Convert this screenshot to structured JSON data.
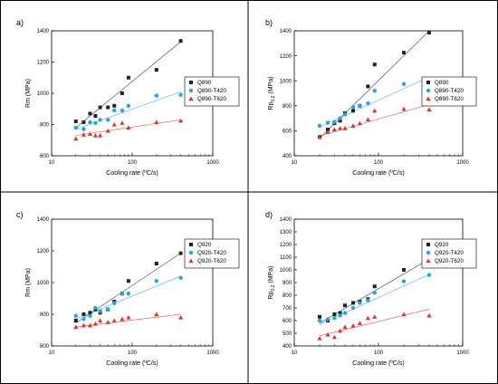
{
  "chart_data": [
    {
      "type": "scatter",
      "panel_label": "a)",
      "xlabel": "Cooling rate (ºC/s)",
      "ylabel": "Rm (MPa)",
      "ylabel_sub": "",
      "x_scale": "log",
      "xlim": [
        10,
        1000
      ],
      "ylim": [
        600,
        1400
      ],
      "x_ticks": [
        "10",
        "100",
        "1000"
      ],
      "y_ticks": [
        "600",
        "800",
        "1000",
        "1200",
        "1400"
      ],
      "legend_position": "right",
      "series": [
        {
          "name": "Q890",
          "marker": "square",
          "color": "#222222",
          "x": [
            20,
            25,
            30,
            35,
            40,
            50,
            60,
            75,
            90,
            200,
            400
          ],
          "y": [
            820,
            815,
            870,
            855,
            910,
            910,
            920,
            1000,
            1100,
            1150,
            1335
          ],
          "fit": [
            [
              20,
              780
            ],
            [
              400,
              1330
            ]
          ]
        },
        {
          "name": "Q890-T420",
          "marker": "circle",
          "color": "#1fa8e0",
          "x": [
            20,
            25,
            30,
            35,
            40,
            50,
            60,
            75,
            90,
            200,
            400
          ],
          "y": [
            780,
            770,
            815,
            810,
            830,
            830,
            890,
            890,
            920,
            985,
            990
          ],
          "fit": [
            [
              20,
              770
            ],
            [
              400,
              1010
            ]
          ]
        },
        {
          "name": "Q890-T620",
          "marker": "triangle",
          "color": "#e83030",
          "x": [
            20,
            25,
            30,
            35,
            40,
            50,
            60,
            75,
            90,
            200,
            400
          ],
          "y": [
            710,
            735,
            740,
            730,
            730,
            760,
            800,
            810,
            780,
            815,
            825
          ],
          "fit": [
            [
              20,
              730
            ],
            [
              400,
              830
            ]
          ]
        }
      ]
    },
    {
      "type": "scatter",
      "panel_label": "b)",
      "xlabel": "Cooling rate (ºC/s)",
      "ylabel": "Rp",
      "ylabel_sub": "0.2",
      "ylabel_suffix": " (MPa)",
      "x_scale": "log",
      "xlim": [
        10,
        1000
      ],
      "ylim": [
        400,
        1400
      ],
      "x_ticks": [
        "10",
        "100",
        "1000"
      ],
      "y_ticks": [
        "400",
        "600",
        "800",
        "1000",
        "1200",
        "1400"
      ],
      "legend_position": "right",
      "series": [
        {
          "name": "Q890",
          "marker": "square",
          "color": "#222222",
          "x": [
            20,
            25,
            30,
            35,
            40,
            50,
            60,
            75,
            90,
            200,
            400
          ],
          "y": [
            550,
            610,
            660,
            680,
            740,
            760,
            800,
            955,
            1130,
            1225,
            1385
          ],
          "fit": [
            [
              20,
              540
            ],
            [
              400,
              1400
            ]
          ]
        },
        {
          "name": "Q890-T420",
          "marker": "circle",
          "color": "#1fa8e0",
          "x": [
            20,
            25,
            30,
            35,
            40,
            50,
            60,
            75,
            90,
            200,
            400
          ],
          "y": [
            640,
            665,
            670,
            700,
            730,
            790,
            800,
            820,
            920,
            975,
            960
          ],
          "fit": [
            [
              20,
              630
            ],
            [
              400,
              1030
            ]
          ]
        },
        {
          "name": "Q890-T620",
          "marker": "triangle",
          "color": "#e83030",
          "x": [
            20,
            25,
            30,
            35,
            40,
            50,
            60,
            75,
            90,
            200,
            400
          ],
          "y": [
            550,
            590,
            610,
            620,
            620,
            640,
            660,
            690,
            760,
            775,
            770
          ],
          "fit": [
            [
              20,
              560
            ],
            [
              400,
              810
            ]
          ]
        }
      ]
    },
    {
      "type": "scatter",
      "panel_label": "c)",
      "xlabel": "Cooling rate (ºC/s)",
      "ylabel": "Rm (MPa)",
      "ylabel_sub": "",
      "x_scale": "log",
      "xlim": [
        10,
        1000
      ],
      "ylim": [
        600,
        1400
      ],
      "x_ticks": [
        "10",
        "100",
        "1000"
      ],
      "y_ticks": [
        "600",
        "800",
        "1000",
        "1200",
        "1400"
      ],
      "legend_position": "right",
      "series": [
        {
          "name": "Q920",
          "marker": "square",
          "color": "#222222",
          "x": [
            20,
            25,
            30,
            35,
            40,
            50,
            60,
            75,
            90,
            200,
            400
          ],
          "y": [
            760,
            800,
            810,
            830,
            810,
            830,
            880,
            930,
            1010,
            1120,
            1185
          ],
          "fit": [
            [
              20,
              745
            ],
            [
              400,
              1185
            ]
          ]
        },
        {
          "name": "Q920-T420",
          "marker": "circle",
          "color": "#1fa8e0",
          "x": [
            20,
            25,
            30,
            35,
            40,
            50,
            60,
            75,
            90,
            200,
            400
          ],
          "y": [
            790,
            770,
            790,
            840,
            820,
            830,
            870,
            930,
            930,
            1010,
            1030
          ],
          "fit": [
            [
              20,
              770
            ],
            [
              400,
              1040
            ]
          ]
        },
        {
          "name": "Q920-T620",
          "marker": "triangle",
          "color": "#e83030",
          "x": [
            20,
            25,
            30,
            35,
            40,
            50,
            60,
            75,
            90,
            200,
            400
          ],
          "y": [
            720,
            730,
            730,
            740,
            760,
            750,
            760,
            770,
            780,
            800,
            780
          ],
          "fit": [
            [
              20,
              720
            ],
            [
              400,
              800
            ]
          ]
        }
      ]
    },
    {
      "type": "scatter",
      "panel_label": "d)",
      "xlabel": "Cooling rate (ºC/s)",
      "ylabel": "Rp",
      "ylabel_sub": "0.2",
      "ylabel_suffix": " (MPa)",
      "x_scale": "log",
      "xlim": [
        10,
        1000
      ],
      "ylim": [
        400,
        1400
      ],
      "x_ticks": [
        "10",
        "100",
        "1000"
      ],
      "y_ticks": [
        "400",
        "500",
        "600",
        "700",
        "800",
        "900",
        "1000",
        "1100",
        "1200",
        "1300",
        "1400"
      ],
      "legend_position": "right",
      "series": [
        {
          "name": "Q920",
          "marker": "square",
          "color": "#222222",
          "x": [
            20,
            25,
            30,
            35,
            40,
            50,
            60,
            75,
            90,
            200,
            400
          ],
          "y": [
            630,
            600,
            650,
            660,
            720,
            740,
            750,
            770,
            870,
            1000,
            1085
          ],
          "fit": [
            [
              20,
              580
            ],
            [
              400,
              1085
            ]
          ]
        },
        {
          "name": "Q920-T420",
          "marker": "circle",
          "color": "#1fa8e0",
          "x": [
            20,
            25,
            30,
            35,
            40,
            50,
            60,
            75,
            90,
            200,
            400
          ],
          "y": [
            600,
            610,
            620,
            640,
            660,
            700,
            740,
            760,
            820,
            910,
            960
          ],
          "fit": [
            [
              20,
              570
            ],
            [
              400,
              965
            ]
          ]
        },
        {
          "name": "Q920-T620",
          "marker": "triangle",
          "color": "#e83030",
          "x": [
            20,
            25,
            30,
            35,
            40,
            50,
            60,
            75,
            90,
            200,
            400
          ],
          "y": [
            460,
            490,
            470,
            520,
            550,
            560,
            580,
            620,
            630,
            650,
            640
          ],
          "fit": [
            [
              20,
              480
            ],
            [
              400,
              690
            ]
          ]
        }
      ]
    }
  ]
}
